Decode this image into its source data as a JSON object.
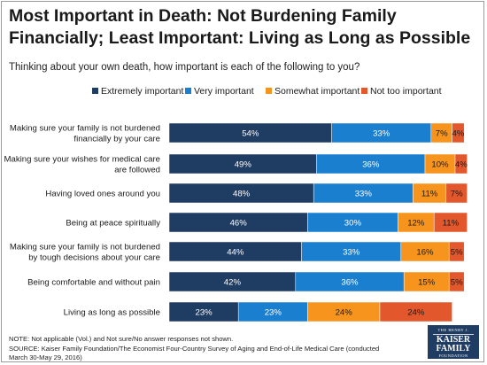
{
  "header": {
    "title": "Most Important in Death: Not Burdening Family Financially; Least Important: Living as Long as Possible",
    "subtitle": "Thinking about your own death, how important is each of the following to you?"
  },
  "footer": {
    "note": "NOTE: Not applicable (Vol.) and Not sure/No answer responses not shown.",
    "source": "SOURCE: Kaiser Family Foundation/The Economist Four-Country Survey of Aging and End-of-Life Medical Care (conducted March 30-May 29, 2016)"
  },
  "logo": {
    "line1": "THE HENRY J.",
    "line2a": "KAISER",
    "line2b": "FAMILY",
    "line3": "FOUNDATION"
  },
  "chart_data": {
    "type": "bar",
    "orientation": "horizontal",
    "stacked": true,
    "grid": false,
    "legend_position": "top",
    "categories": [
      "Making sure your family is not burdened financially by your care",
      "Making sure your wishes for medical care are followed",
      "Having loved ones around you",
      "Being at peace spiritually",
      "Making sure your family is not burdened by tough decisions about your care",
      "Being comfortable and without pain",
      "Living as long as possible"
    ],
    "series": [
      {
        "name": "Extremely important",
        "color": "#1f3c63",
        "label_color": "#ffffff",
        "values": [
          54,
          49,
          48,
          46,
          44,
          42,
          23
        ]
      },
      {
        "name": "Very important",
        "color": "#1b7fcf",
        "label_color": "#ffffff",
        "values": [
          33,
          36,
          33,
          30,
          33,
          36,
          23
        ]
      },
      {
        "name": "Somewhat important",
        "color": "#f7941d",
        "label_color": "#1a1a1a",
        "values": [
          7,
          10,
          11,
          12,
          16,
          15,
          24
        ]
      },
      {
        "name": "Not too important",
        "color": "#e2572b",
        "label_color": "#1a1a1a",
        "values": [
          4,
          4,
          7,
          11,
          5,
          5,
          24
        ]
      }
    ],
    "value_suffix": "%",
    "xlim": [
      0,
      100
    ]
  }
}
